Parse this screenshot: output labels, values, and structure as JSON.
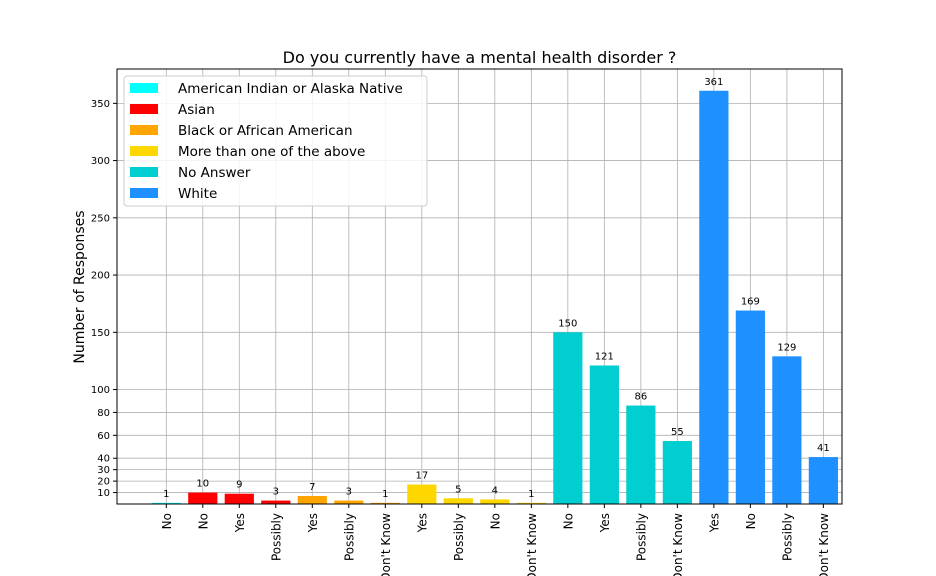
{
  "chart_data": {
    "type": "bar",
    "title": "Do you currently have a mental health disorder ?",
    "xlabel": "",
    "ylabel": "Number of Responses",
    "ylim": [
      0,
      380
    ],
    "yticks": [
      10,
      20,
      30,
      40,
      60,
      80,
      100,
      150,
      200,
      250,
      300,
      350
    ],
    "grid": true,
    "legend_position": "top-left",
    "series": [
      {
        "name": "American Indian or Alaska Native",
        "color": "#00ffff",
        "labels": [
          "No"
        ],
        "values": [
          1
        ]
      },
      {
        "name": "Asian",
        "color": "#ff0000",
        "labels": [
          "No",
          "Yes",
          "Possibly"
        ],
        "values": [
          10,
          9,
          3
        ]
      },
      {
        "name": "Black or African American",
        "color": "#ffa500",
        "labels": [
          "Yes",
          "Possibly",
          "Don't Know"
        ],
        "values": [
          7,
          3,
          1
        ]
      },
      {
        "name": "More than one of the above",
        "color": "#ffd700",
        "labels": [
          "Yes",
          "Possibly",
          "No",
          "Don't Know"
        ],
        "values": [
          17,
          5,
          4,
          1
        ]
      },
      {
        "name": "No Answer",
        "color": "#00ced1",
        "labels": [
          "No",
          "Yes",
          "Possibly",
          "Don't Know"
        ],
        "values": [
          150,
          121,
          86,
          55
        ]
      },
      {
        "name": " White",
        "color": "#1e90ff",
        "labels": [
          "Yes",
          "No",
          "Possibly",
          "Don't Know"
        ],
        "values": [
          361,
          169,
          129,
          41
        ]
      }
    ]
  }
}
